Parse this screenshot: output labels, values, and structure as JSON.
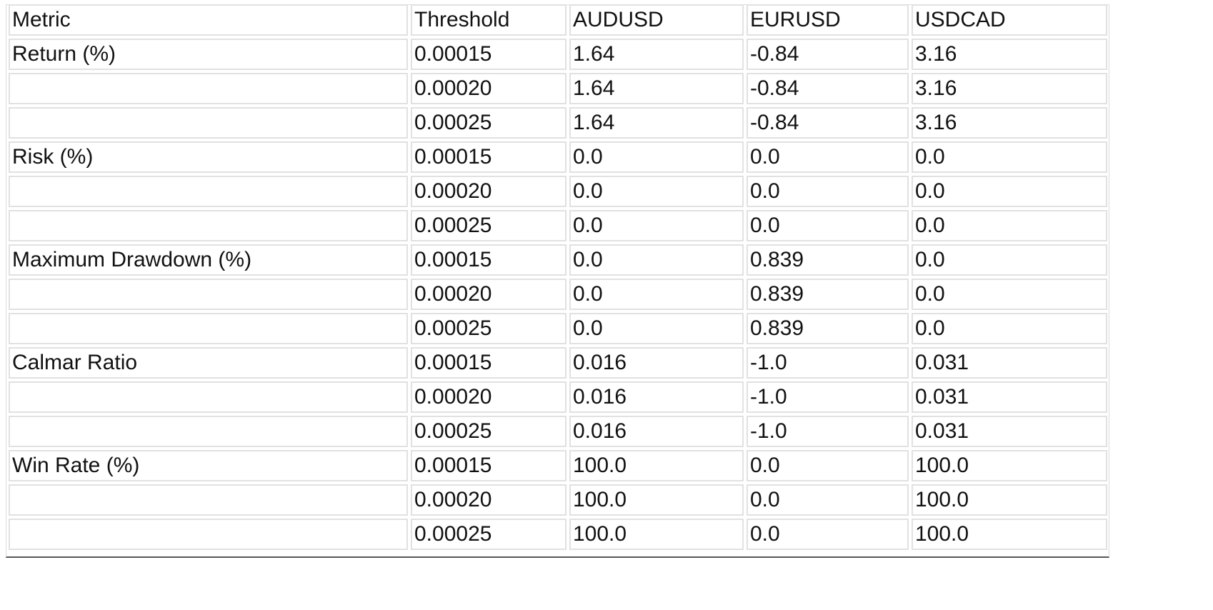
{
  "table": {
    "headers": [
      "Metric",
      "Threshold",
      "AUDUSD",
      "EURUSD",
      "USDCAD"
    ],
    "rows": [
      [
        "Return (%)",
        "0.00015",
        "1.64",
        "-0.84",
        "3.16"
      ],
      [
        "",
        "0.00020",
        "1.64",
        "-0.84",
        "3.16"
      ],
      [
        "",
        "0.00025",
        "1.64",
        "-0.84",
        "3.16"
      ],
      [
        "Risk (%)",
        "0.00015",
        "0.0",
        "0.0",
        "0.0"
      ],
      [
        "",
        "0.00020",
        "0.0",
        "0.0",
        "0.0"
      ],
      [
        "",
        "0.00025",
        "0.0",
        "0.0",
        "0.0"
      ],
      [
        "Maximum Drawdown (%)",
        "0.00015",
        "0.0",
        "0.839",
        "0.0"
      ],
      [
        "",
        "0.00020",
        "0.0",
        "0.839",
        "0.0"
      ],
      [
        "",
        "0.00025",
        "0.0",
        "0.839",
        "0.0"
      ],
      [
        "Calmar Ratio",
        "0.00015",
        "0.016",
        "-1.0",
        "0.031"
      ],
      [
        "",
        "0.00020",
        "0.016",
        "-1.0",
        "0.031"
      ],
      [
        "",
        "0.00025",
        "0.016",
        "-1.0",
        "0.031"
      ],
      [
        "Win Rate (%)",
        "0.00015",
        "100.0",
        "0.0",
        "100.0"
      ],
      [
        "",
        "0.00020",
        "100.0",
        "0.0",
        "100.0"
      ],
      [
        "",
        "0.00025",
        "100.0",
        "0.0",
        "100.0"
      ]
    ]
  }
}
